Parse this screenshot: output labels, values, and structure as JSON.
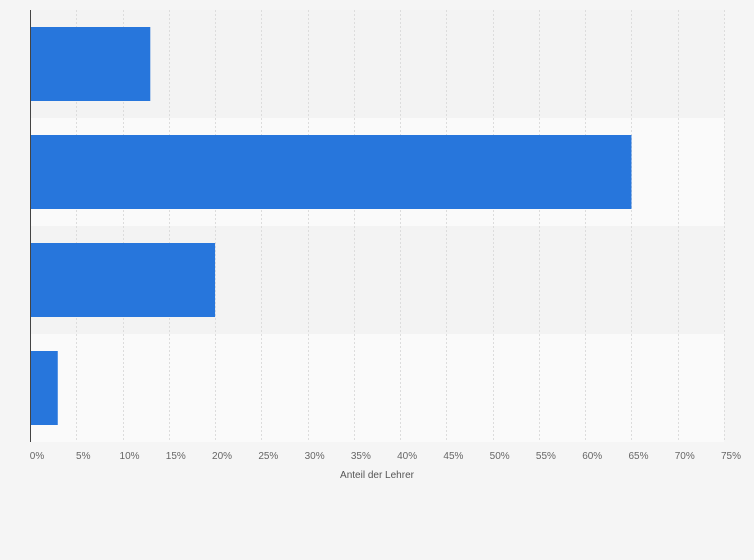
{
  "chart_data": {
    "type": "bar",
    "orientation": "horizontal",
    "categories": [
      "",
      "",
      "",
      ""
    ],
    "values": [
      13,
      65,
      20,
      3
    ],
    "xlabel": "Anteil der Lehrer",
    "xlim": [
      0,
      75
    ],
    "xticks": [
      0,
      5,
      10,
      15,
      20,
      25,
      30,
      35,
      40,
      45,
      50,
      55,
      60,
      65,
      70,
      75
    ],
    "tick_format": "{v}%",
    "grid": true,
    "bar_color": "#2776dc",
    "band_colors": [
      "#f3f3f3",
      "#fafafa"
    ]
  }
}
